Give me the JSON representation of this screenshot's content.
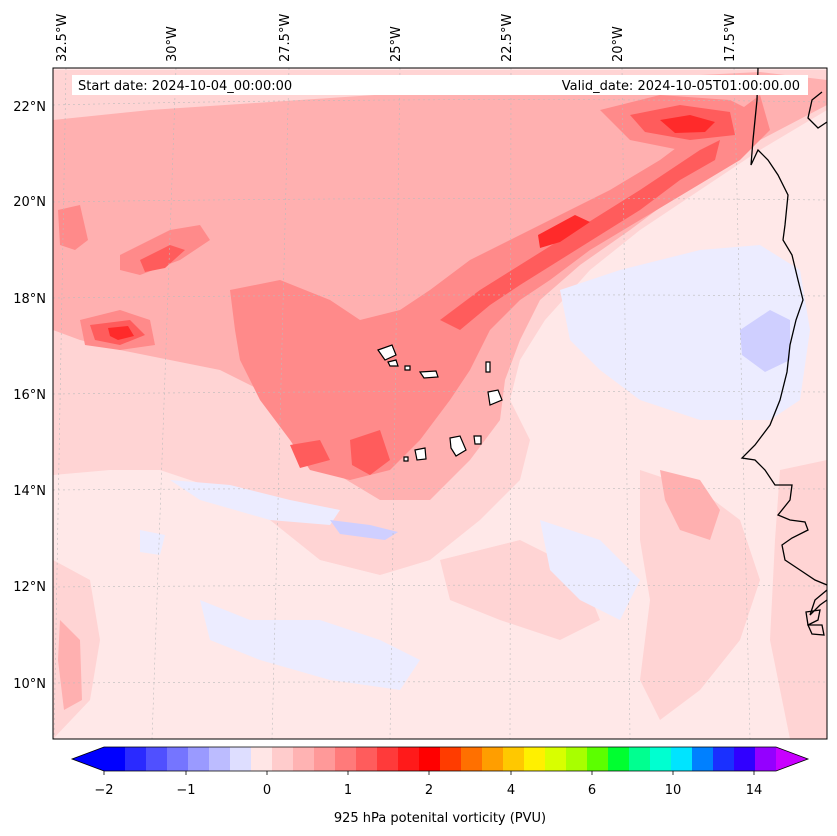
{
  "map": {
    "start_date": "Start date: 2024-10-04_00:00:00",
    "valid_date": "Valid_date: 2024-10-05T01:00:00.00",
    "lon_labels": [
      "32.5°W",
      "30°W",
      "27.5°W",
      "25°W",
      "22.5°W",
      "20°W",
      "17.5°W"
    ],
    "lat_labels": [
      "22°N",
      "20°N",
      "18°N",
      "16°N",
      "14°N",
      "12°N",
      "10°N"
    ],
    "region": "Cape Verde Islands and West African coast"
  },
  "colorbar": {
    "label": "925 hPa potenital vorticity (PVU)",
    "tick_labels": [
      "−2",
      "−1",
      "0",
      "1",
      "2",
      "4",
      "6",
      "10",
      "14"
    ],
    "colors": [
      "#0000ff",
      "#2a2aff",
      "#5050ff",
      "#7575ff",
      "#9a9aff",
      "#bcbcff",
      "#dedeff",
      "#ffe6e6",
      "#ffcccc",
      "#ffb3b3",
      "#ff9999",
      "#ff7a7a",
      "#ff5c5c",
      "#ff3a3a",
      "#ff1a1a",
      "#ff0000",
      "#ff3c00",
      "#ff7000",
      "#ff9e00",
      "#ffc800",
      "#fff000",
      "#d8ff00",
      "#a8ff00",
      "#5cff00",
      "#00ff30",
      "#00ff90",
      "#00ffd0",
      "#00e4ff",
      "#0080ff",
      "#1a30ff",
      "#3000ff",
      "#9400ff"
    ],
    "extend_low_color": "#0000ff",
    "extend_high_color": "#c800ff"
  },
  "palette": {
    "background": "#ffe8e8",
    "pink_light": "#ffd4d4",
    "pink_mid": "#ffb0b0",
    "red_mid": "#ff8080",
    "red_strong": "#ff5050",
    "red_core": "#ff2a2a",
    "blue_light": "#ececff",
    "blue_mid": "#cfcfff",
    "coast": "#000000"
  }
}
